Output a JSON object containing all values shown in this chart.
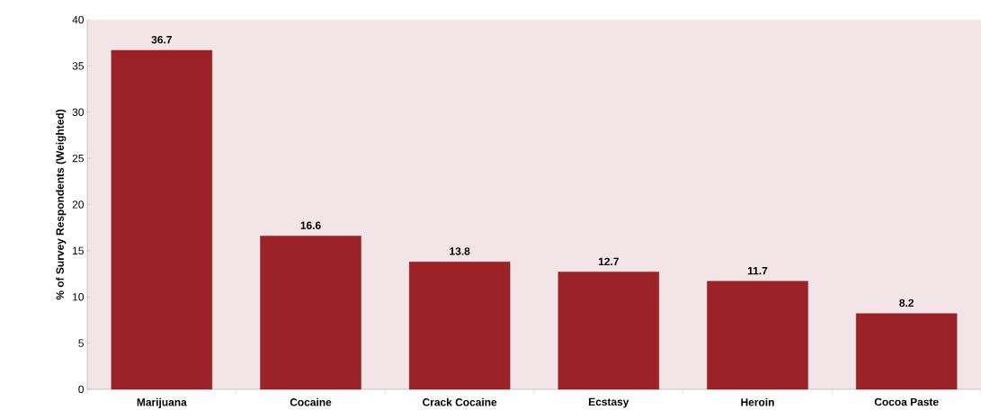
{
  "chart_data": {
    "type": "bar",
    "ylabel": "% of Survey Respondents (Weighted)",
    "categories": [
      "Marijuana",
      "Cocaine",
      "Crack Cocaine",
      "Ecstasy",
      "Heroin",
      "Cocoa Paste"
    ],
    "values": [
      36.7,
      16.6,
      13.8,
      12.7,
      11.7,
      8.2
    ],
    "color": "#9b2226",
    "ylim": [
      0,
      40
    ],
    "yticks": [
      0,
      5,
      10,
      15,
      20,
      25,
      30,
      35,
      40
    ],
    "grid": false,
    "data_labels": true
  }
}
